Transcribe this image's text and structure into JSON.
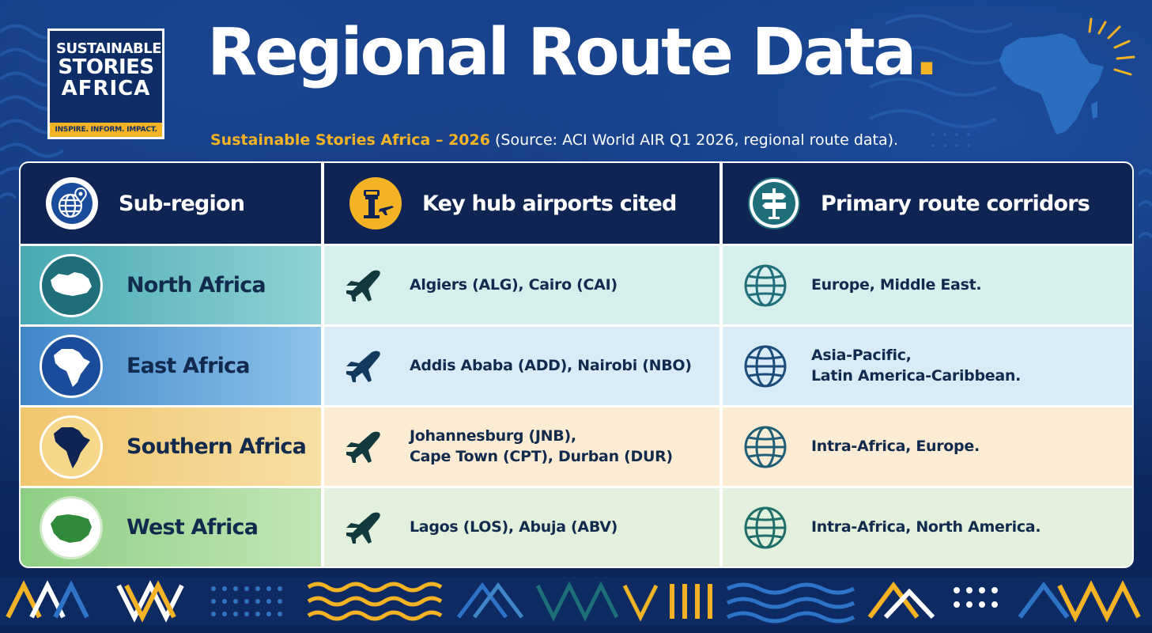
{
  "logo": {
    "line1": "SUSTAINABLE",
    "line2": "STORIES",
    "line3": "AFRICA",
    "tagline": "INSPIRE. INFORM. IMPACT."
  },
  "header": {
    "title": "Regional Route Data",
    "title_dot": ".",
    "subtitle_brand": "Sustainable Stories Africa – 2026",
    "subtitle_source": "(Source: ACI World AIR Q1 2026, regional route data)."
  },
  "table": {
    "columns": [
      {
        "label": "Sub-region",
        "icon": "globe-pin-icon"
      },
      {
        "label": "Key hub airports cited",
        "icon": "control-tower-icon"
      },
      {
        "label": "Primary route corridors",
        "icon": "signpost-icon"
      }
    ],
    "rows": [
      {
        "region": "North Africa",
        "airports": [
          "Algiers (ALG), Cairo (CAI)"
        ],
        "corridors": [
          "Europe, Middle East."
        ]
      },
      {
        "region": "East Africa",
        "airports": [
          "Addis Ababa (ADD), Nairobi (NBO)"
        ],
        "corridors": [
          "Asia-Pacific,",
          "Latin America-Caribbean."
        ]
      },
      {
        "region": "Southern Africa",
        "airports": [
          "Johannesburg (JNB),",
          "Cape Town (CPT), Durban (DUR)"
        ],
        "corridors": [
          "Intra-Africa, Europe."
        ]
      },
      {
        "region": "West Africa",
        "airports": [
          "Lagos (LOS), Abuja (ABV)"
        ],
        "corridors": [
          "Intra-Africa, North America."
        ]
      }
    ]
  },
  "colors": {
    "navy": "#0f2453",
    "accent": "#f4b324",
    "teal": "#1f6f7a"
  }
}
